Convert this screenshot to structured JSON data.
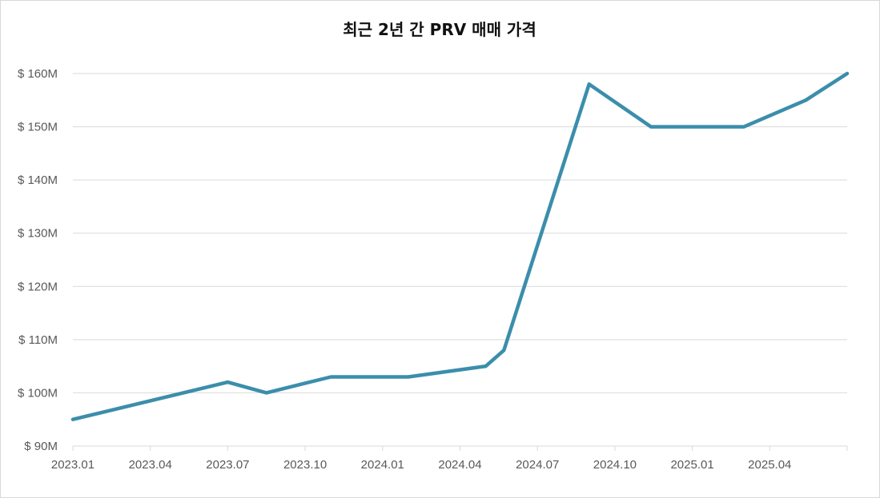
{
  "chart_data": {
    "type": "line",
    "title": "최근 2년 간 PRV 매매 가격",
    "xlabel": "",
    "ylabel": "",
    "x_ticks": [
      "2023.01",
      "2023.04",
      "2023.07",
      "2023.10",
      "2024.01",
      "2024.04",
      "2024.07",
      "2024.10",
      "2025.01",
      "2025.04"
    ],
    "y_ticks": [
      "$ 90M",
      "$ 100M",
      "$ 110M",
      "$ 120M",
      "$ 130M",
      "$ 140M",
      "$ 150M",
      "$ 160M"
    ],
    "ylim": [
      90,
      160
    ],
    "xlim": [
      "2023.01",
      "2025.07"
    ],
    "y_unit": "$ M",
    "grid": true,
    "legend": "none",
    "series": [
      {
        "color": "#3b8eab",
        "points": [
          {
            "x": "2023.01",
            "y": 95
          },
          {
            "x": "2023.07",
            "y": 102
          },
          {
            "x": "2023.08.5",
            "y": 100
          },
          {
            "x": "2023.11",
            "y": 103
          },
          {
            "x": "2024.02",
            "y": 103
          },
          {
            "x": "2024.05",
            "y": 105
          },
          {
            "x": "2024.05.7",
            "y": 108
          },
          {
            "x": "2024.09",
            "y": 158
          },
          {
            "x": "2024.11.4",
            "y": 150
          },
          {
            "x": "2025.03",
            "y": 150
          },
          {
            "x": "2025.05.4",
            "y": 155
          },
          {
            "x": "2025.07",
            "y": 160
          }
        ]
      }
    ]
  }
}
